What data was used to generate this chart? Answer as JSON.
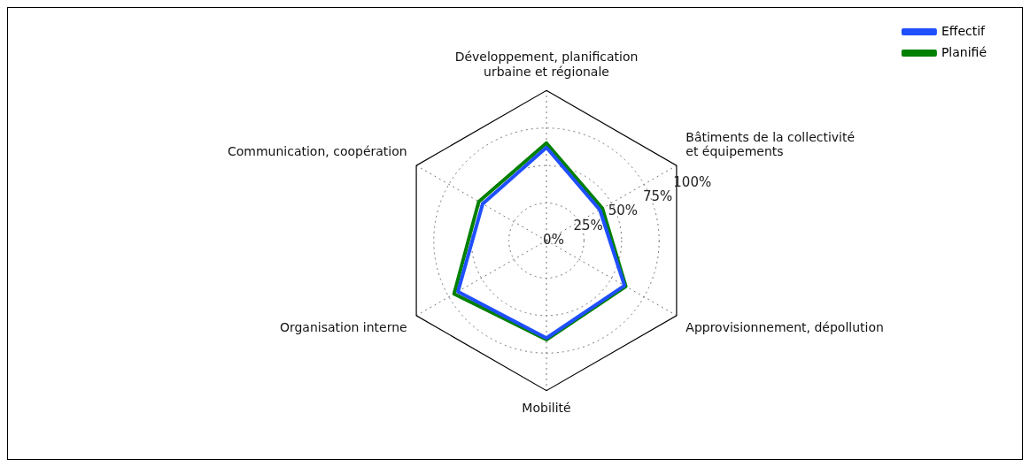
{
  "chart_data": {
    "type": "radar",
    "categories": [
      "Développement, planification\nurbaine et régionale",
      "Bâtiments de la collectivité\net équipements",
      "Approvisionnement, dépollution",
      "Mobilité",
      "Organisation interne",
      "Communication, coopération"
    ],
    "series": [
      {
        "name": "Effectif",
        "color": "#1f4fff",
        "values": [
          62,
          41,
          60,
          65,
          68,
          49
        ]
      },
      {
        "name": "Planifié",
        "color": "#008000",
        "values": [
          65,
          43,
          61,
          66,
          71,
          52
        ]
      }
    ],
    "ylim": [
      0,
      100
    ],
    "yticks": [
      {
        "value": 0,
        "label": "0%"
      },
      {
        "value": 25,
        "label": "25%"
      },
      {
        "value": 50,
        "label": "50%"
      },
      {
        "value": 75,
        "label": "75%"
      },
      {
        "value": 100,
        "label": "100%"
      }
    ],
    "grid": true,
    "legend": "top right"
  }
}
